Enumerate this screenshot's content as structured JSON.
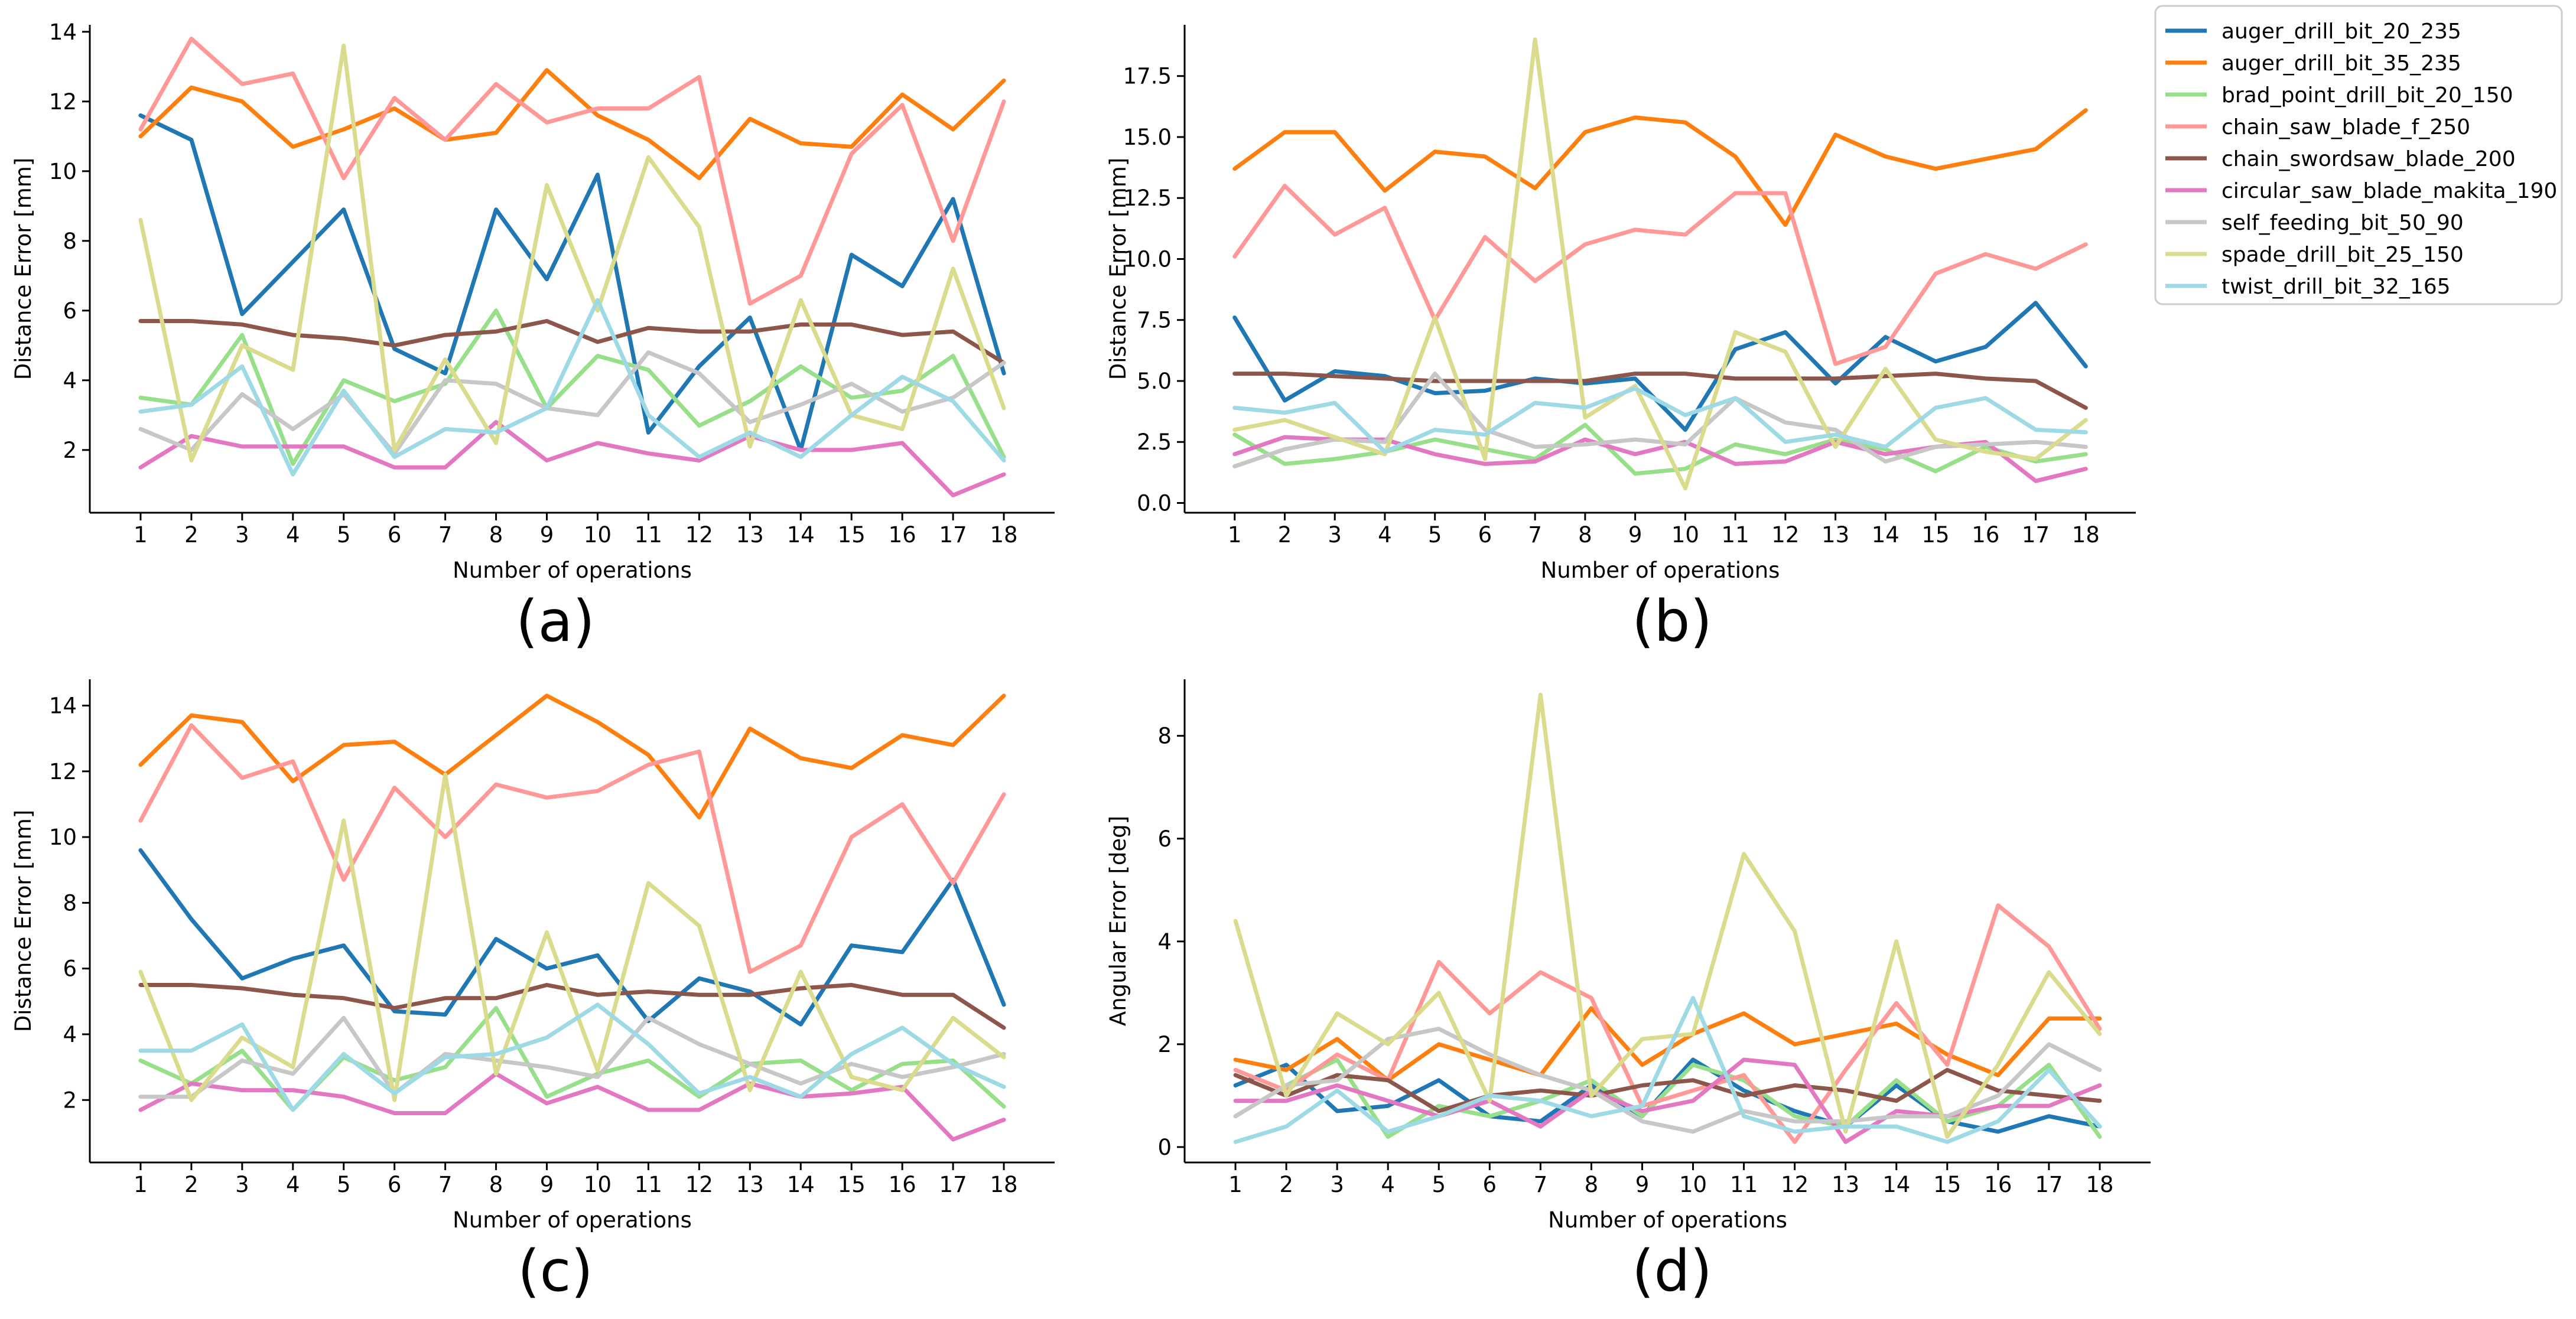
{
  "legend": [
    {
      "name": "auger_drill_bit_20_235",
      "color": "#1f77b4"
    },
    {
      "name": "auger_drill_bit_35_235",
      "color": "#ff7f0e"
    },
    {
      "name": "brad_point_drill_bit_20_150",
      "color": "#98df8a"
    },
    {
      "name": "chain_saw_blade_f_250",
      "color": "#ff9896"
    },
    {
      "name": "chain_swordsaw_blade_200",
      "color": "#8c564b"
    },
    {
      "name": "circular_saw_blade_makita_190",
      "color": "#e377c2"
    },
    {
      "name": "self_feeding_bit_50_90",
      "color": "#c7c7c7"
    },
    {
      "name": "spade_drill_bit_25_150",
      "color": "#dbdb8d"
    },
    {
      "name": "twist_drill_bit_32_165",
      "color": "#9edae5"
    }
  ],
  "chart_data": [
    {
      "id": "a",
      "type": "line",
      "caption": "(a)",
      "xlabel": "Number of operations",
      "ylabel": "Distance Error [mm]",
      "x": [
        1,
        2,
        3,
        4,
        5,
        6,
        7,
        8,
        9,
        10,
        11,
        12,
        13,
        14,
        15,
        16,
        17,
        18
      ],
      "xlim": [
        0,
        19
      ],
      "ylim": [
        0.2,
        14.2
      ],
      "yticks": [
        2,
        4,
        6,
        8,
        10,
        12,
        14
      ],
      "ytick_labels": [
        "2",
        "4",
        "6",
        "8",
        "10",
        "12",
        "14"
      ],
      "series": [
        {
          "name": "auger_drill_bit_20_235",
          "values": [
            11.6,
            10.9,
            5.9,
            7.4,
            8.9,
            4.9,
            4.2,
            8.9,
            6.9,
            9.9,
            2.5,
            4.4,
            5.8,
            2.0,
            7.6,
            6.7,
            9.2,
            4.2
          ]
        },
        {
          "name": "auger_drill_bit_35_235",
          "values": [
            11.0,
            12.4,
            12.0,
            10.7,
            11.2,
            11.8,
            10.9,
            11.1,
            12.9,
            11.6,
            10.9,
            9.8,
            11.5,
            10.8,
            10.7,
            12.2,
            11.2,
            12.6
          ]
        },
        {
          "name": "brad_point_drill_bit_20_150",
          "values": [
            3.5,
            3.3,
            5.3,
            1.6,
            4.0,
            3.4,
            3.9,
            6.0,
            3.2,
            4.7,
            4.3,
            2.7,
            3.4,
            4.4,
            3.5,
            3.7,
            4.7,
            1.8
          ]
        },
        {
          "name": "chain_saw_blade_f_250",
          "values": [
            11.2,
            13.8,
            12.5,
            12.8,
            9.8,
            12.1,
            10.9,
            12.5,
            11.4,
            11.8,
            11.8,
            12.7,
            6.2,
            7.0,
            10.5,
            11.9,
            8.0,
            12.0
          ]
        },
        {
          "name": "chain_swordsaw_blade_200",
          "values": [
            5.7,
            5.7,
            5.6,
            5.3,
            5.2,
            5.0,
            5.3,
            5.4,
            5.7,
            5.1,
            5.5,
            5.4,
            5.4,
            5.6,
            5.6,
            5.3,
            5.4,
            4.5
          ]
        },
        {
          "name": "circular_saw_blade_makita_190",
          "values": [
            1.5,
            2.4,
            2.1,
            2.1,
            2.1,
            1.5,
            1.5,
            2.8,
            1.7,
            2.2,
            1.9,
            1.7,
            2.4,
            2.0,
            2.0,
            2.2,
            0.7,
            1.3
          ]
        },
        {
          "name": "self_feeding_bit_50_90",
          "values": [
            2.6,
            2.0,
            3.6,
            2.6,
            3.6,
            1.9,
            4.0,
            3.9,
            3.2,
            3.0,
            4.8,
            4.2,
            2.8,
            3.3,
            3.9,
            3.1,
            3.5,
            4.5
          ]
        },
        {
          "name": "spade_drill_bit_25_150",
          "values": [
            8.6,
            1.7,
            5.0,
            4.3,
            13.6,
            2.0,
            4.6,
            2.2,
            9.6,
            6.0,
            10.4,
            8.4,
            2.1,
            6.3,
            3.0,
            2.6,
            7.2,
            3.2
          ]
        },
        {
          "name": "twist_drill_bit_32_165",
          "values": [
            3.1,
            3.3,
            4.4,
            1.3,
            3.7,
            1.8,
            2.6,
            2.5,
            3.2,
            6.3,
            3.0,
            1.8,
            2.5,
            1.8,
            3.0,
            4.1,
            3.4,
            1.7
          ]
        }
      ]
    },
    {
      "id": "b",
      "type": "line",
      "caption": "(b)",
      "xlabel": "Number of operations",
      "ylabel": "Distance Error [mm]",
      "x": [
        1,
        2,
        3,
        4,
        5,
        6,
        7,
        8,
        9,
        10,
        11,
        12,
        13,
        14,
        15,
        16,
        17,
        18
      ],
      "xlim": [
        0,
        19
      ],
      "ylim": [
        -0.4,
        19.6
      ],
      "yticks": [
        0,
        2.5,
        5,
        7.5,
        10,
        12.5,
        15,
        17.5
      ],
      "ytick_labels": [
        "0.0",
        "2.5",
        "5.0",
        "7.5",
        "10.0",
        "12.5",
        "15.0",
        "17.5"
      ],
      "series": [
        {
          "name": "auger_drill_bit_20_235",
          "values": [
            7.6,
            4.2,
            5.4,
            5.2,
            4.5,
            4.6,
            5.1,
            4.9,
            5.1,
            3.0,
            6.3,
            7.0,
            4.9,
            6.8,
            5.8,
            6.4,
            8.2,
            5.6
          ]
        },
        {
          "name": "auger_drill_bit_35_235",
          "values": [
            13.7,
            15.2,
            15.2,
            12.8,
            14.4,
            14.2,
            12.9,
            15.2,
            15.8,
            15.6,
            14.2,
            11.4,
            15.1,
            14.2,
            13.7,
            14.1,
            14.5,
            16.1
          ]
        },
        {
          "name": "brad_point_drill_bit_20_150",
          "values": [
            2.8,
            1.6,
            1.8,
            2.1,
            2.6,
            2.2,
            1.8,
            3.2,
            1.2,
            1.4,
            2.4,
            2.0,
            2.6,
            2.2,
            1.3,
            2.3,
            1.7,
            2.0
          ]
        },
        {
          "name": "chain_saw_blade_f_250",
          "values": [
            10.1,
            13.0,
            11.0,
            12.1,
            7.5,
            10.9,
            9.1,
            10.6,
            11.2,
            11.0,
            12.7,
            12.7,
            5.7,
            6.4,
            9.4,
            10.2,
            9.6,
            10.6
          ]
        },
        {
          "name": "chain_swordsaw_blade_200",
          "values": [
            5.3,
            5.3,
            5.2,
            5.1,
            5.0,
            5.0,
            5.0,
            5.0,
            5.3,
            5.3,
            5.1,
            5.1,
            5.1,
            5.2,
            5.3,
            5.1,
            5.0,
            3.9
          ]
        },
        {
          "name": "circular_saw_blade_makita_190",
          "values": [
            2.0,
            2.7,
            2.6,
            2.6,
            2.0,
            1.6,
            1.7,
            2.6,
            2.0,
            2.5,
            1.6,
            1.7,
            2.5,
            2.0,
            2.3,
            2.5,
            0.9,
            1.4
          ]
        },
        {
          "name": "self_feeding_bit_50_90",
          "values": [
            1.5,
            2.2,
            2.6,
            2.5,
            5.3,
            3.0,
            2.3,
            2.4,
            2.6,
            2.4,
            4.3,
            3.3,
            3.0,
            1.7,
            2.3,
            2.4,
            2.5,
            2.3
          ]
        },
        {
          "name": "spade_drill_bit_25_150",
          "values": [
            3.0,
            3.4,
            2.7,
            2.0,
            7.6,
            1.8,
            19.0,
            3.5,
            4.8,
            0.6,
            7.0,
            6.2,
            2.3,
            5.5,
            2.6,
            2.1,
            1.8,
            3.4
          ]
        },
        {
          "name": "twist_drill_bit_32_165",
          "values": [
            3.9,
            3.7,
            4.1,
            2.1,
            3.0,
            2.8,
            4.1,
            3.9,
            4.7,
            3.6,
            4.3,
            2.5,
            2.8,
            2.3,
            3.9,
            4.3,
            3.0,
            2.9
          ]
        }
      ]
    },
    {
      "id": "c",
      "type": "line",
      "caption": "(c)",
      "xlabel": "Number of operations",
      "ylabel": "Distance Error [mm]",
      "x": [
        1,
        2,
        3,
        4,
        5,
        6,
        7,
        8,
        9,
        10,
        11,
        12,
        13,
        14,
        15,
        16,
        17,
        18
      ],
      "xlim": [
        0,
        19
      ],
      "ylim": [
        0.1,
        14.8
      ],
      "yticks": [
        2,
        4,
        6,
        8,
        10,
        12,
        14
      ],
      "ytick_labels": [
        "2",
        "4",
        "6",
        "8",
        "10",
        "12",
        "14"
      ],
      "series": [
        {
          "name": "auger_drill_bit_20_235",
          "values": [
            9.6,
            7.5,
            5.7,
            6.3,
            6.7,
            4.7,
            4.6,
            6.9,
            6.0,
            6.4,
            4.4,
            5.7,
            5.3,
            4.3,
            6.7,
            6.5,
            8.7,
            4.9
          ]
        },
        {
          "name": "auger_drill_bit_35_235",
          "values": [
            12.2,
            13.7,
            13.5,
            11.7,
            12.8,
            12.9,
            11.9,
            13.1,
            14.3,
            13.5,
            12.5,
            10.6,
            13.3,
            12.4,
            12.1,
            13.1,
            12.8,
            14.3
          ]
        },
        {
          "name": "brad_point_drill_bit_20_150",
          "values": [
            3.2,
            2.5,
            3.5,
            1.7,
            3.3,
            2.6,
            3.0,
            4.8,
            2.1,
            2.8,
            3.2,
            2.1,
            3.1,
            3.2,
            2.3,
            3.1,
            3.2,
            1.8
          ]
        },
        {
          "name": "chain_saw_blade_f_250",
          "values": [
            10.5,
            13.4,
            11.8,
            12.3,
            8.7,
            11.5,
            10.0,
            11.6,
            11.2,
            11.4,
            12.2,
            12.6,
            5.9,
            6.7,
            10.0,
            11.0,
            8.6,
            11.3
          ]
        },
        {
          "name": "chain_swordsaw_blade_200",
          "values": [
            5.5,
            5.5,
            5.4,
            5.2,
            5.1,
            4.8,
            5.1,
            5.1,
            5.5,
            5.2,
            5.3,
            5.2,
            5.2,
            5.4,
            5.5,
            5.2,
            5.2,
            4.2
          ]
        },
        {
          "name": "circular_saw_blade_makita_190",
          "values": [
            1.7,
            2.5,
            2.3,
            2.3,
            2.1,
            1.6,
            1.6,
            2.8,
            1.9,
            2.4,
            1.7,
            1.7,
            2.5,
            2.1,
            2.2,
            2.4,
            0.8,
            1.4
          ]
        },
        {
          "name": "self_feeding_bit_50_90",
          "values": [
            2.1,
            2.1,
            3.2,
            2.8,
            4.5,
            2.2,
            3.4,
            3.2,
            3.0,
            2.7,
            4.5,
            3.7,
            3.1,
            2.5,
            3.1,
            2.7,
            3.0,
            3.4
          ]
        },
        {
          "name": "spade_drill_bit_25_150",
          "values": [
            5.9,
            2.0,
            3.9,
            3.0,
            10.5,
            2.0,
            11.9,
            2.8,
            7.1,
            2.9,
            8.6,
            7.3,
            2.3,
            5.9,
            2.7,
            2.3,
            4.5,
            3.3
          ]
        },
        {
          "name": "twist_drill_bit_32_165",
          "values": [
            3.5,
            3.5,
            4.3,
            1.7,
            3.4,
            2.2,
            3.3,
            3.4,
            3.9,
            4.9,
            3.7,
            2.2,
            2.7,
            2.1,
            3.4,
            4.2,
            3.1,
            2.4
          ]
        }
      ]
    },
    {
      "id": "d",
      "type": "line",
      "caption": "(d)",
      "xlabel": "Number of operations",
      "ylabel": "Angular Error [deg]",
      "x": [
        1,
        2,
        3,
        4,
        5,
        6,
        7,
        8,
        9,
        10,
        11,
        12,
        13,
        14,
        15,
        16,
        17,
        18
      ],
      "xlim": [
        0,
        19
      ],
      "ylim": [
        -0.3,
        9.1
      ],
      "yticks": [
        0,
        2,
        4,
        6,
        8
      ],
      "ytick_labels": [
        "0",
        "2",
        "4",
        "6",
        "8"
      ],
      "series": [
        {
          "name": "auger_drill_bit_20_235",
          "values": [
            1.2,
            1.6,
            0.7,
            0.8,
            1.3,
            0.6,
            0.5,
            1.2,
            0.6,
            1.7,
            1.1,
            0.7,
            0.4,
            1.2,
            0.5,
            0.3,
            0.6,
            0.4
          ]
        },
        {
          "name": "auger_drill_bit_35_235",
          "values": [
            1.7,
            1.5,
            2.1,
            1.3,
            2.0,
            1.7,
            1.4,
            2.7,
            1.6,
            2.2,
            2.6,
            2.0,
            2.2,
            2.4,
            1.8,
            1.4,
            2.5,
            2.5
          ]
        },
        {
          "name": "brad_point_drill_bit_20_150",
          "values": [
            0.6,
            1.2,
            1.7,
            0.2,
            0.8,
            0.6,
            0.9,
            1.3,
            0.6,
            1.6,
            1.3,
            0.6,
            0.4,
            1.3,
            0.5,
            0.8,
            1.6,
            0.2
          ]
        },
        {
          "name": "chain_saw_blade_f_250",
          "values": [
            1.5,
            1.1,
            1.8,
            1.3,
            3.6,
            2.6,
            3.4,
            2.9,
            0.8,
            1.1,
            1.4,
            0.1,
            1.5,
            2.8,
            1.6,
            4.7,
            3.9,
            2.3
          ]
        },
        {
          "name": "chain_swordsaw_blade_200",
          "values": [
            1.4,
            1.0,
            1.4,
            1.3,
            0.7,
            1.0,
            1.1,
            1.0,
            1.2,
            1.3,
            1.0,
            1.2,
            1.1,
            0.9,
            1.5,
            1.1,
            1.0,
            0.9
          ]
        },
        {
          "name": "circular_saw_blade_makita_190",
          "values": [
            0.9,
            0.9,
            1.2,
            0.9,
            0.6,
            0.9,
            0.4,
            1.1,
            0.7,
            0.9,
            1.7,
            1.6,
            0.1,
            0.7,
            0.6,
            0.8,
            0.8,
            1.2
          ]
        },
        {
          "name": "self_feeding_bit_50_90",
          "values": [
            0.6,
            1.2,
            1.3,
            2.1,
            2.3,
            1.8,
            1.4,
            1.1,
            0.5,
            0.3,
            0.7,
            0.5,
            0.5,
            0.6,
            0.6,
            1.0,
            2.0,
            1.5
          ]
        },
        {
          "name": "spade_drill_bit_25_150",
          "values": [
            4.4,
            1.0,
            2.6,
            2.0,
            3.0,
            0.9,
            8.8,
            1.0,
            2.1,
            2.2,
            5.7,
            4.2,
            0.3,
            4.0,
            0.2,
            1.6,
            3.4,
            2.2
          ]
        },
        {
          "name": "twist_drill_bit_32_165",
          "values": [
            0.1,
            0.4,
            1.1,
            0.3,
            0.6,
            1.0,
            0.9,
            0.6,
            0.8,
            2.9,
            0.6,
            0.3,
            0.4,
            0.4,
            0.1,
            0.5,
            1.5,
            0.4
          ]
        }
      ]
    }
  ]
}
